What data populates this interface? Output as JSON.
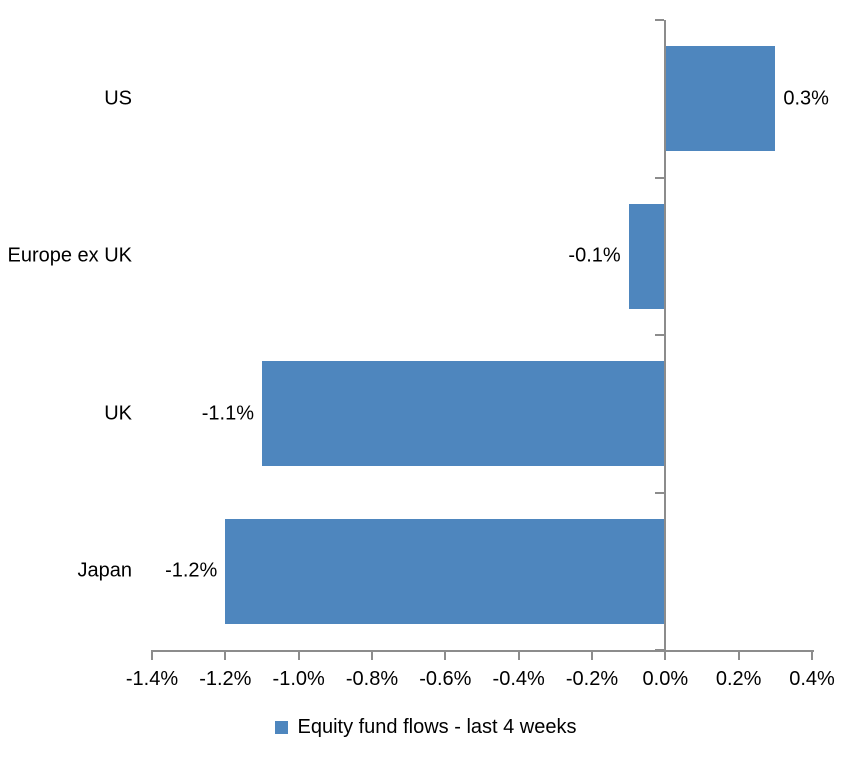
{
  "chart_data": {
    "type": "bar",
    "orientation": "horizontal",
    "title": "",
    "xlabel": "",
    "ylabel": "",
    "categories": [
      "US",
      "Europe ex UK",
      "UK",
      "Japan"
    ],
    "values": [
      0.3,
      -0.1,
      -1.1,
      -1.2
    ],
    "data_labels": [
      "0.3%",
      "-0.1%",
      "-1.1%",
      "-1.2%"
    ],
    "series": [
      {
        "name": "Equity fund flows - last 4 weeks",
        "values": [
          0.3,
          -0.1,
          -1.1,
          -1.2
        ]
      }
    ],
    "legend_label": "Equity fund flows - last 4 weeks",
    "legend_position": "bottom",
    "x_ticks": [
      "-1.4%",
      "-1.2%",
      "-1.0%",
      "-0.8%",
      "-0.6%",
      "-0.4%",
      "-0.2%",
      "0.0%",
      "0.2%",
      "0.4%"
    ],
    "xlim": [
      -1.4,
      0.4
    ],
    "grid": false,
    "bar_color": "#4E86BE",
    "axis_color": "#8C8C8C",
    "text_color": "#000000"
  }
}
